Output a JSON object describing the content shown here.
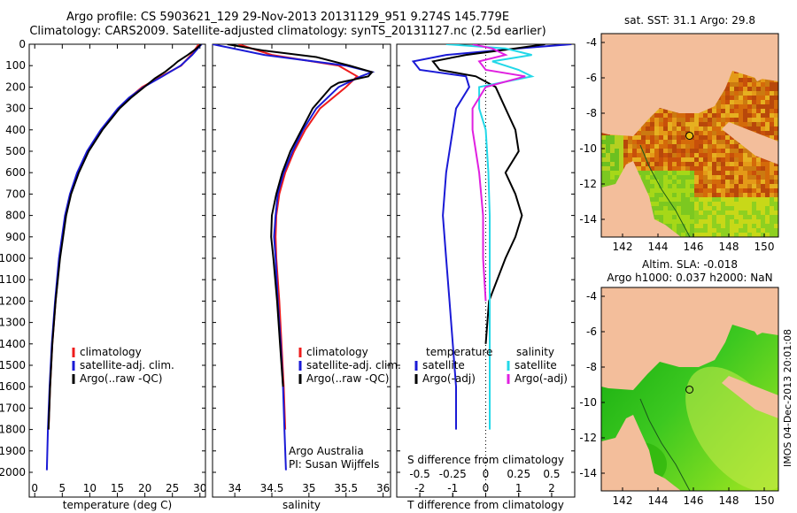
{
  "header": {
    "line1": "Argo profile: CS 5903621_129 29-Nov-2013 20131129_951 9.274S 145.779E",
    "line2": "Climatology: CARS2009. Satellite-adjusted climatology: synTS_20131127.nc (2.5d earlier)"
  },
  "colors": {
    "climatology": "#ee1c1c",
    "satellite": "#1a1ad6",
    "argo": "#000000",
    "satellite_s": "#22d8e8",
    "argo_s": "#e020e0",
    "land": "#f3be9b"
  },
  "depth_axis": {
    "min": 0,
    "max": 2000,
    "ticks": [
      0,
      100,
      200,
      300,
      400,
      500,
      600,
      700,
      800,
      900,
      1000,
      1100,
      1200,
      1300,
      1400,
      1500,
      1600,
      1700,
      1800,
      1900,
      2000
    ]
  },
  "chart_data": [
    {
      "type": "line",
      "panel": "temperature",
      "xlabel": "temperature (deg C)",
      "xlim": [
        -1,
        31
      ],
      "xticks": [
        0,
        5,
        10,
        15,
        20,
        25,
        30
      ],
      "ylabel": "depth",
      "legend": [
        "climatology",
        "satellite-adj. clim.",
        "Argo(..raw -QC)"
      ],
      "series": [
        {
          "name": "climatology",
          "depth": [
            0,
            50,
            100,
            150,
            200,
            250,
            300,
            400,
            500,
            600,
            700,
            800,
            1000,
            1200,
            1400,
            1600,
            1800
          ],
          "values": [
            29.8,
            28.4,
            26.6,
            23.0,
            19.5,
            17.2,
            15.3,
            12.2,
            9.6,
            7.8,
            6.5,
            5.6,
            4.5,
            3.8,
            3.2,
            2.8,
            2.5
          ]
        },
        {
          "name": "satellite-adj. clim.",
          "depth": [
            0,
            50,
            100,
            150,
            200,
            250,
            300,
            400,
            500,
            600,
            700,
            800,
            1000,
            1200,
            1400,
            1600,
            1800,
            1990
          ],
          "values": [
            30.3,
            28.6,
            26.5,
            23.2,
            19.8,
            17.1,
            15.1,
            12.0,
            9.5,
            7.7,
            6.4,
            5.5,
            4.4,
            3.7,
            3.1,
            2.7,
            2.4,
            2.2
          ]
        },
        {
          "name": "Argo(..raw -QC)",
          "depth": [
            0,
            20,
            50,
            80,
            100,
            130,
            160,
            200,
            250,
            300,
            400,
            500,
            600,
            700,
            800,
            1000,
            1200,
            1400,
            1600,
            1800
          ],
          "values": [
            30.2,
            29.4,
            27.8,
            26.0,
            25.1,
            23.6,
            21.8,
            19.9,
            17.5,
            15.4,
            12.3,
            9.8,
            8.0,
            6.6,
            5.7,
            4.6,
            3.8,
            3.2,
            2.8,
            2.5
          ]
        }
      ]
    },
    {
      "type": "line",
      "panel": "salinity",
      "xlabel": "salinity",
      "xlim": [
        33.7,
        36.1
      ],
      "xticks": [
        34,
        34.5,
        35,
        35.5,
        36
      ],
      "legend": [
        "climatology",
        "satellite-adj. clim.",
        "Argo(..raw -QC)"
      ],
      "annotation": [
        "Argo Australia",
        "PI: Susan Wijffels"
      ],
      "series": [
        {
          "name": "climatology",
          "depth": [
            0,
            50,
            100,
            150,
            200,
            300,
            400,
            500,
            600,
            700,
            800,
            900,
            1000,
            1200,
            1400,
            1600,
            1800
          ],
          "values": [
            34.05,
            34.5,
            35.4,
            35.65,
            35.5,
            35.15,
            34.95,
            34.8,
            34.68,
            34.6,
            34.56,
            34.55,
            34.56,
            34.6,
            34.63,
            34.66,
            34.68
          ]
        },
        {
          "name": "satellite-adj. clim.",
          "depth": [
            0,
            50,
            100,
            130,
            150,
            200,
            300,
            400,
            500,
            600,
            700,
            800,
            900,
            1000,
            1200,
            1400,
            1600,
            1800,
            1990
          ],
          "values": [
            33.7,
            34.4,
            35.5,
            35.85,
            35.7,
            35.4,
            35.1,
            34.92,
            34.78,
            34.66,
            34.58,
            34.55,
            34.53,
            34.55,
            34.58,
            34.62,
            34.65,
            34.67,
            34.69
          ]
        },
        {
          "name": "Argo(..raw -QC)",
          "depth": [
            0,
            30,
            60,
            100,
            130,
            150,
            180,
            200,
            300,
            400,
            500,
            600,
            700,
            800,
            900,
            1000,
            1200,
            1400,
            1600
          ],
          "values": [
            33.9,
            34.4,
            35.1,
            35.55,
            35.85,
            35.8,
            35.4,
            35.3,
            35.05,
            34.9,
            34.75,
            34.64,
            34.56,
            34.5,
            34.49,
            34.52,
            34.57,
            34.61,
            34.65
          ]
        }
      ]
    },
    {
      "type": "line",
      "panel": "difference",
      "xlabel_bottom": "T difference from climatology",
      "xlim_T": [
        -2.7,
        2.7
      ],
      "xticks_T": [
        -2,
        -1,
        0,
        1,
        2
      ],
      "xlabel_top": "S difference from climatology",
      "xticks_S": [
        -0.5,
        -0.25,
        0,
        0.25,
        0.5
      ],
      "xtick_labels_S": [
        "-0.5",
        "-0.25",
        "0",
        "0.25",
        "0.5"
      ],
      "legend_left_title": "temperature",
      "legend_right_title": "salinity",
      "legend": [
        "satellite",
        "Argo(-adj)",
        "satellite",
        "Argo(-adj)"
      ],
      "series": [
        {
          "name": "temperature satellite",
          "depth": [
            0,
            20,
            50,
            80,
            120,
            150,
            200,
            300,
            400,
            600,
            800,
            1000,
            1200,
            1400,
            1600,
            1800
          ],
          "values": [
            2.6,
            1.0,
            -1.2,
            -2.2,
            -2.0,
            -0.6,
            -0.5,
            -0.9,
            -1.0,
            -1.2,
            -1.3,
            -1.2,
            -1.1,
            -1.0,
            -0.9,
            -0.9
          ]
        },
        {
          "name": "temperature Argo(-adj)",
          "depth": [
            0,
            20,
            50,
            80,
            120,
            150,
            200,
            300,
            400,
            500,
            600,
            700,
            800,
            900,
            1000,
            1200,
            1400
          ],
          "values": [
            1.8,
            0.9,
            -0.6,
            -1.6,
            -1.4,
            -0.3,
            0.3,
            0.6,
            0.9,
            1.0,
            0.6,
            0.9,
            1.1,
            0.9,
            0.6,
            0.1,
            0.0
          ]
        },
        {
          "name": "salinity satellite",
          "depth": [
            0,
            20,
            50,
            80,
            120,
            150,
            200,
            300,
            400,
            600,
            800,
            1000,
            1200,
            1400,
            1600,
            1800
          ],
          "values": [
            -0.3,
            0.15,
            0.35,
            0.05,
            0.25,
            0.35,
            -0.05,
            -0.05,
            0.0,
            0.02,
            0.03,
            0.03,
            0.03,
            0.03,
            0.03,
            0.03
          ]
        },
        {
          "name": "salinity Argo(-adj)",
          "depth": [
            0,
            20,
            50,
            80,
            120,
            150,
            200,
            300,
            400,
            600,
            800,
            1000,
            1200
          ],
          "values": [
            -0.1,
            0.05,
            0.15,
            -0.05,
            0.0,
            0.3,
            0.0,
            -0.1,
            -0.1,
            -0.05,
            -0.02,
            -0.02,
            0.0
          ]
        }
      ]
    },
    {
      "type": "heatmap",
      "panel": "sst_map",
      "title": "sat. SST: 31.1  Argo: 29.8",
      "xlim": [
        140.8,
        150.8
      ],
      "ylim": [
        -15,
        -3.5
      ],
      "xticks": [
        142,
        144,
        146,
        148,
        150
      ],
      "yticks": [
        -4,
        -6,
        -8,
        -10,
        -12,
        -14
      ],
      "float": [
        145.779,
        -9.274
      ]
    },
    {
      "type": "heatmap",
      "panel": "sla_map",
      "title1": "Altim. SLA: -0.018",
      "title2": "Argo h1000: 0.037 h2000: NaN",
      "xlim": [
        140.8,
        150.8
      ],
      "ylim": [
        -15,
        -3.5
      ],
      "xticks": [
        142,
        144,
        146,
        148,
        150
      ],
      "yticks": [
        -4,
        -6,
        -8,
        -10,
        -12,
        -14
      ],
      "float": [
        145.779,
        -9.274
      ]
    }
  ],
  "footer": {
    "stamp": "IMOS 04-Dec-2013 20:01:08"
  }
}
